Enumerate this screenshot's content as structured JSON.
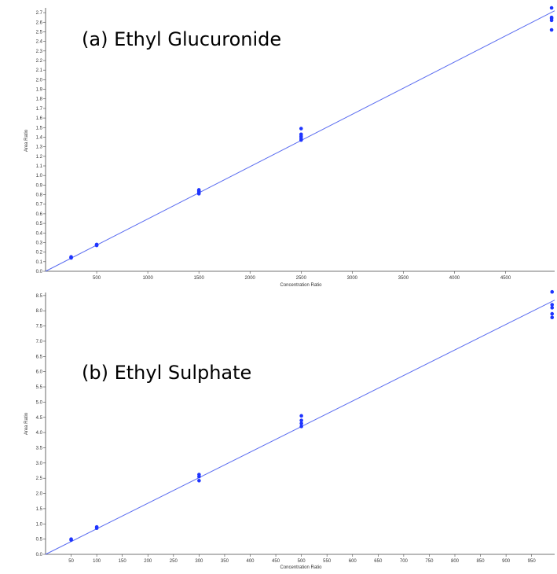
{
  "colors": {
    "points": "#1f35ff",
    "fit_line": "#5a6cf0",
    "axis": "#444444",
    "background": "#ffffff"
  },
  "chart_data": [
    {
      "type": "scatter",
      "title": "(a) Ethyl Glucuronide",
      "xlabel": "Concentration Ratio",
      "ylabel": "Area Ratio",
      "xlim": [
        0,
        4980
      ],
      "ylim": [
        0,
        2.75
      ],
      "xticks": [
        500,
        1000,
        1500,
        2000,
        2500,
        3000,
        3500,
        4000,
        4500
      ],
      "yticks": [
        0.0,
        0.1,
        0.2,
        0.3,
        0.4,
        0.5,
        0.6,
        0.7,
        0.8,
        0.9,
        1.0,
        1.1,
        1.2,
        1.3,
        1.4,
        1.5,
        1.6,
        1.7,
        1.8,
        1.9,
        2.0,
        2.1,
        2.2,
        2.3,
        2.4,
        2.5,
        2.6,
        2.7
      ],
      "ytick_decimals": 1,
      "grid": false,
      "points": [
        {
          "x": 250,
          "y": 0.14
        },
        {
          "x": 250,
          "y": 0.15
        },
        {
          "x": 250,
          "y": 0.145
        },
        {
          "x": 500,
          "y": 0.27
        },
        {
          "x": 500,
          "y": 0.28
        },
        {
          "x": 500,
          "y": 0.275
        },
        {
          "x": 1500,
          "y": 0.81
        },
        {
          "x": 1500,
          "y": 0.82
        },
        {
          "x": 1500,
          "y": 0.83
        },
        {
          "x": 1500,
          "y": 0.84
        },
        {
          "x": 1500,
          "y": 0.85
        },
        {
          "x": 2500,
          "y": 1.37
        },
        {
          "x": 2500,
          "y": 1.39
        },
        {
          "x": 2500,
          "y": 1.41
        },
        {
          "x": 2500,
          "y": 1.43
        },
        {
          "x": 2500,
          "y": 1.49
        },
        {
          "x": 4950,
          "y": 2.52
        },
        {
          "x": 4950,
          "y": 2.62
        },
        {
          "x": 4950,
          "y": 2.64
        },
        {
          "x": 4950,
          "y": 2.65
        },
        {
          "x": 4950,
          "y": 2.75
        }
      ],
      "fit_line": {
        "x": [
          0,
          4980
        ],
        "y": [
          0.0,
          2.72
        ]
      }
    },
    {
      "type": "scatter",
      "title": "(b) Ethyl Sulphate",
      "xlabel": "Concentration Ratio",
      "ylabel": "Area Ratio",
      "xlim": [
        0,
        995
      ],
      "ylim": [
        0,
        8.6
      ],
      "xticks": [
        50,
        100,
        150,
        200,
        250,
        300,
        350,
        400,
        450,
        500,
        550,
        600,
        650,
        700,
        750,
        800,
        850,
        900,
        950
      ],
      "yticks": [
        0.0,
        0.5,
        1.0,
        1.5,
        2.0,
        2.5,
        3.0,
        3.5,
        4.0,
        4.5,
        5.0,
        5.5,
        6.0,
        6.5,
        7.0,
        7.5,
        8.0,
        8.5
      ],
      "ytick_decimals": 1,
      "grid": false,
      "points": [
        {
          "x": 50,
          "y": 0.47
        },
        {
          "x": 50,
          "y": 0.5
        },
        {
          "x": 100,
          "y": 0.86
        },
        {
          "x": 100,
          "y": 0.9
        },
        {
          "x": 300,
          "y": 2.42
        },
        {
          "x": 300,
          "y": 2.55
        },
        {
          "x": 300,
          "y": 2.62
        },
        {
          "x": 500,
          "y": 4.2
        },
        {
          "x": 500,
          "y": 4.3
        },
        {
          "x": 500,
          "y": 4.4
        },
        {
          "x": 500,
          "y": 4.55
        },
        {
          "x": 990,
          "y": 7.78
        },
        {
          "x": 990,
          "y": 7.9
        },
        {
          "x": 990,
          "y": 8.1
        },
        {
          "x": 990,
          "y": 8.2
        },
        {
          "x": 990,
          "y": 8.62
        }
      ],
      "fit_line": {
        "x": [
          0,
          995
        ],
        "y": [
          0.0,
          8.35
        ]
      }
    }
  ]
}
